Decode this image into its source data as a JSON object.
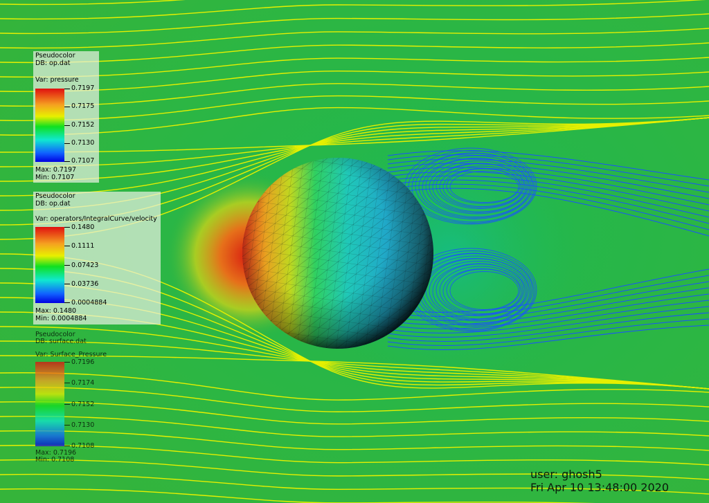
{
  "legends": [
    {
      "plot_type": "Pseudocolor",
      "db": "DB: op.dat",
      "var": "Var: pressure",
      "ticks": [
        "0.7197",
        "0.7175",
        "0.7152",
        "0.7130",
        "0.7107"
      ],
      "max": "Max:  0.7197",
      "min": "Min:  0.7107"
    },
    {
      "plot_type": "Pseudocolor",
      "db": "DB: op.dat",
      "var": "Var: operators/IntegralCurve/velocity",
      "ticks": [
        "0.1480",
        "0.1111",
        "0.07423",
        "0.03736",
        "0.0004884"
      ],
      "max": "Max:  0.1480",
      "min": "Min:  0.0004884"
    },
    {
      "plot_type": "Pseudocolor",
      "db": "DB: surface.dat",
      "var": "Var: Surface_Pressure",
      "ticks": [
        "0.7196",
        "0.7174",
        "0.7152",
        "0.7130",
        "0.7108"
      ],
      "max": "Max:  0.7196",
      "min": "Min:  0.7108"
    }
  ],
  "footer": {
    "user": "user: ghosh5",
    "timestamp": "Fri Apr 10 13:48:00 2020"
  },
  "colors": {
    "background": "#1fae3c",
    "streamline_free": "#e6f000",
    "streamline_wake": "#1a50ff"
  }
}
